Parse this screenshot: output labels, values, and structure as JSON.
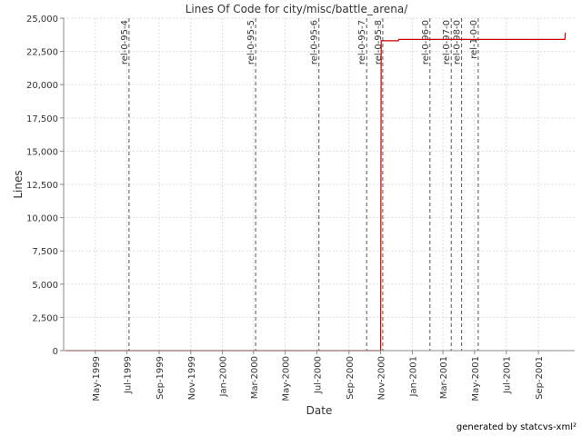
{
  "footer": "generated by statcvs-xml²",
  "chart_data": {
    "type": "line",
    "title": "Lines Of Code for city/misc/battle_arena/",
    "xlabel": "Date",
    "ylabel": "Lines",
    "xlim": [
      "1999-03-01",
      "2001-11-10"
    ],
    "ylim": [
      0,
      25000
    ],
    "yticks": [
      0,
      2500,
      5000,
      7500,
      10000,
      12500,
      15000,
      17500,
      20000,
      22500,
      25000
    ],
    "ytick_labels": [
      "0",
      "2,500",
      "5,000",
      "7,500",
      "10,000",
      "12,500",
      "15,000",
      "17,500",
      "20,000",
      "22,500",
      "25,000"
    ],
    "xticks": [
      {
        "date": "1999-05-01",
        "label": "May-1999"
      },
      {
        "date": "1999-07-01",
        "label": "Jul-1999"
      },
      {
        "date": "1999-09-01",
        "label": "Sep-1999"
      },
      {
        "date": "1999-11-01",
        "label": "Nov-1999"
      },
      {
        "date": "2000-01-01",
        "label": "Jan-2000"
      },
      {
        "date": "2000-03-01",
        "label": "Mar-2000"
      },
      {
        "date": "2000-05-01",
        "label": "May-2000"
      },
      {
        "date": "2000-07-01",
        "label": "Jul-2000"
      },
      {
        "date": "2000-09-01",
        "label": "Sep-2000"
      },
      {
        "date": "2000-11-01",
        "label": "Nov-2000"
      },
      {
        "date": "2001-01-01",
        "label": "Jan-2001"
      },
      {
        "date": "2001-03-01",
        "label": "Mar-2001"
      },
      {
        "date": "2001-05-01",
        "label": "May-2001"
      },
      {
        "date": "2001-07-01",
        "label": "Jul-2001"
      },
      {
        "date": "2001-09-01",
        "label": "Sep-2001"
      }
    ],
    "grid": true,
    "series": [
      {
        "color": "#cc0000",
        "points": [
          {
            "x": "1999-03-05",
            "y": 0
          },
          {
            "x": "2000-11-01",
            "y": 0
          },
          {
            "x": "2000-11-02",
            "y": 23300
          },
          {
            "x": "2000-12-05",
            "y": 23300
          },
          {
            "x": "2000-12-06",
            "y": 23400
          },
          {
            "x": "2001-10-22",
            "y": 23400
          },
          {
            "x": "2001-10-23",
            "y": 23900
          }
        ]
      }
    ],
    "markers": [
      {
        "date": "1999-07-05",
        "label": "rel-0-95-4"
      },
      {
        "date": "2000-03-05",
        "label": "rel-0-95-5"
      },
      {
        "date": "2000-07-05",
        "label": "rel-0-95-6"
      },
      {
        "date": "2000-10-05",
        "label": "rel-0-95-7"
      },
      {
        "date": "2000-11-05",
        "label": "rel-0-95-8"
      },
      {
        "date": "2001-02-04",
        "label": "rel-0-96-0"
      },
      {
        "date": "2001-03-17",
        "label": "rel-0-97-0"
      },
      {
        "date": "2001-04-06",
        "label": "rel-0-98-0"
      },
      {
        "date": "2001-05-08",
        "label": "rel-1-0-0"
      }
    ],
    "colors": {
      "line": "#cc0000",
      "marker": "#555555",
      "grid": "#dddddd",
      "axis": "#888888"
    }
  }
}
